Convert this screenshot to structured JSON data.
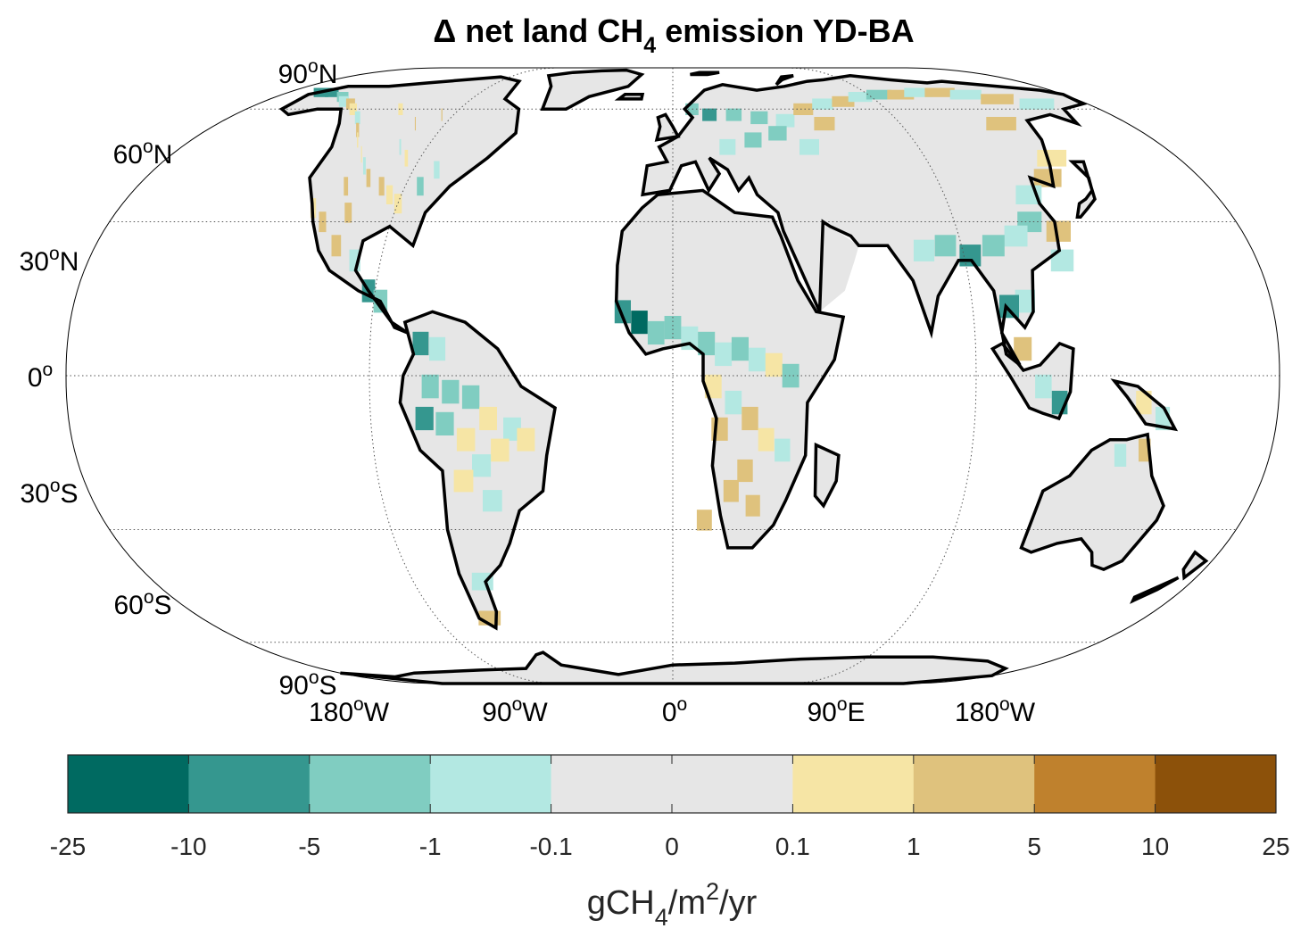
{
  "title": {
    "prefix": "Δ net land CH",
    "sub": "4",
    "suffix": " emission YD-BA"
  },
  "lat_labels": [
    {
      "value": "90",
      "sup": "o",
      "hemi": "N",
      "lat": 90
    },
    {
      "value": "60",
      "sup": "o",
      "hemi": "N",
      "lat": 60
    },
    {
      "value": "30",
      "sup": "o",
      "hemi": "N",
      "lat": 30
    },
    {
      "value": "0",
      "sup": "o",
      "hemi": "",
      "lat": 0
    },
    {
      "value": "30",
      "sup": "o",
      "hemi": "S",
      "lat": -30
    },
    {
      "value": "60",
      "sup": "o",
      "hemi": "S",
      "lat": -60
    },
    {
      "value": "90",
      "sup": "o",
      "hemi": "S",
      "lat": -90
    }
  ],
  "lon_labels": [
    {
      "value": "180",
      "sup": "o",
      "hemi": "W",
      "lon": -180
    },
    {
      "value": "90",
      "sup": "o",
      "hemi": "W",
      "lon": -90
    },
    {
      "value": "0",
      "sup": "o",
      "hemi": "",
      "lon": 0
    },
    {
      "value": "90",
      "sup": "o",
      "hemi": "E",
      "lon": 90
    },
    {
      "value": "180",
      "sup": "o",
      "hemi": "W",
      "lon": 180
    }
  ],
  "colorbar": {
    "ticks": [
      "-25",
      "-10",
      "-5",
      "-1",
      "-0.1",
      "0",
      "0.1",
      "1",
      "5",
      "10",
      "25"
    ],
    "colors": [
      "#006a61",
      "#35978f",
      "#80cdc1",
      "#b3e8e2",
      "#e6e6e6",
      "#e6e6e6",
      "#f6e5a5",
      "#dfc27d",
      "#bf812d",
      "#8c510a"
    ],
    "label_prefix": "gCH",
    "label_sub": "4",
    "label_mid": "/m",
    "label_sup": "2",
    "label_suffix": "/yr"
  },
  "land_color": "#e6e6e6",
  "coast_color": "#000000",
  "grid_color": "#555555"
}
